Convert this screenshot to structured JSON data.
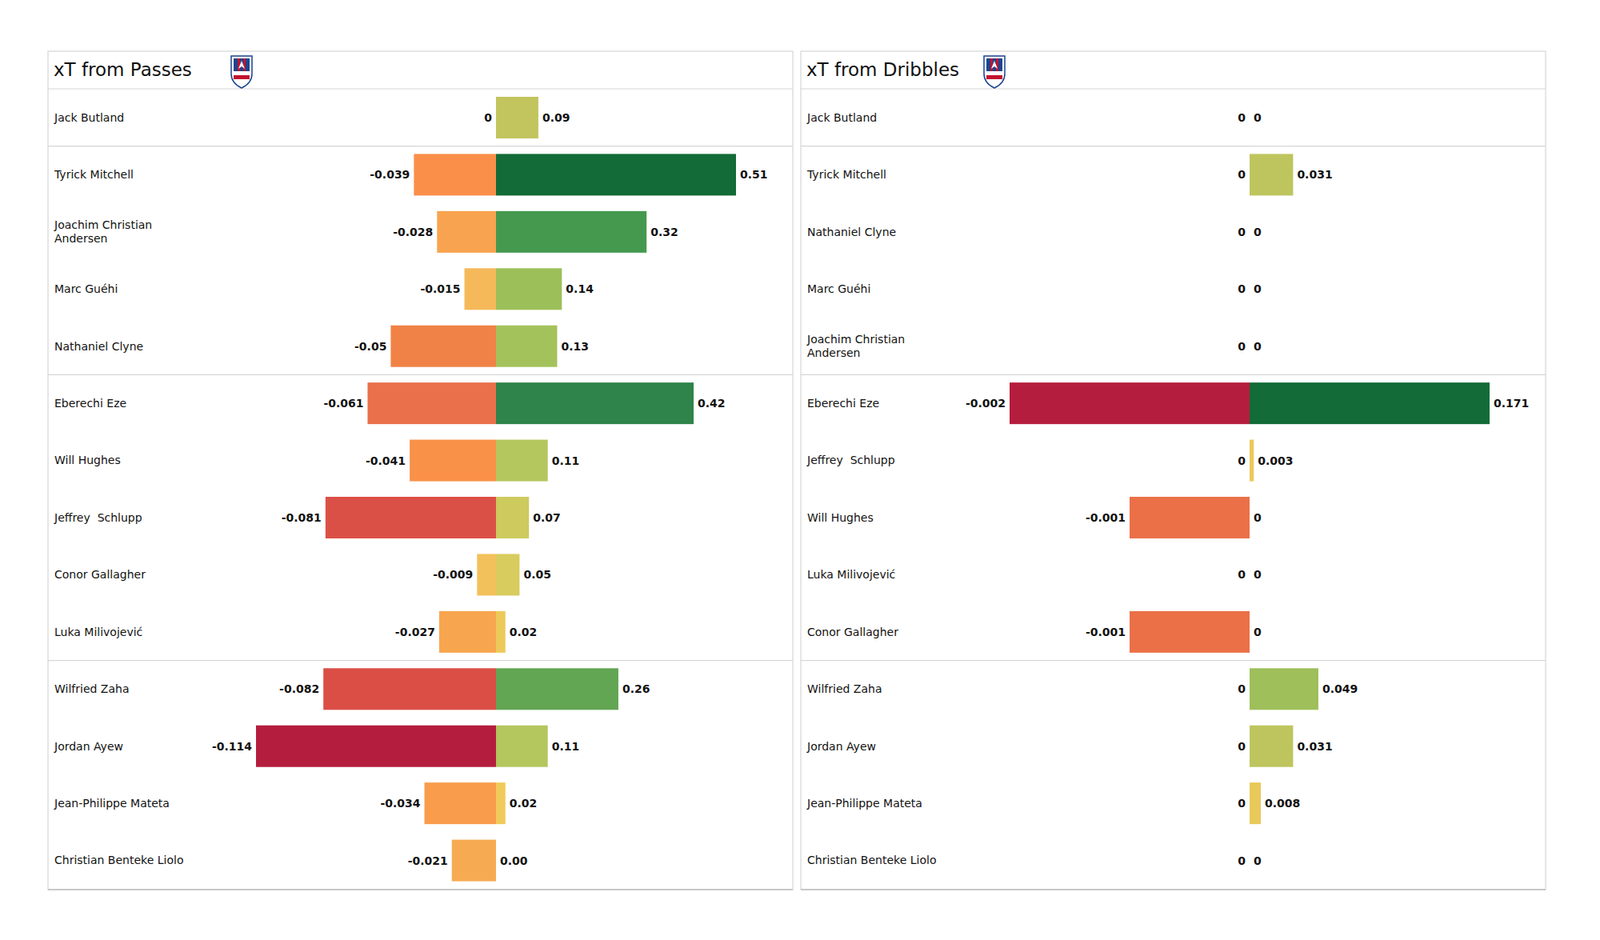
{
  "chart_data": [
    {
      "type": "bar",
      "title": "xT from Passes",
      "orientation": "horizontal",
      "data_labels": true,
      "xlim": [
        -0.114,
        0.51
      ],
      "categories": [
        "Jack Butland",
        "Tyrick Mitchell",
        "Joachim Christian\nAndersen",
        "Marc Guéhi",
        "Nathaniel Clyne",
        "Eberechi Eze",
        "Will Hughes",
        "Jeffrey  Schlupp",
        "Conor Gallagher",
        "Luka Milivojević",
        "Wilfried Zaha",
        "Jordan Ayew",
        "Jean-Philippe Mateta",
        "Christian Benteke Liolo"
      ],
      "series": [
        {
          "values": [
            0,
            -0.039,
            -0.028,
            -0.015,
            -0.05,
            -0.061,
            -0.041,
            -0.081,
            -0.009,
            -0.027,
            -0.082,
            -0.114,
            -0.034,
            -0.021
          ],
          "colors": [
            "#f0c85a",
            "#fa8f4a",
            "#f8a34f",
            "#f5b95a",
            "#f08247",
            "#e9704a",
            "#f99148",
            "#db5046",
            "#f3c15b",
            "#f8a54f",
            "#da4e45",
            "#b51d3e",
            "#f99c4c",
            "#f6ab53"
          ]
        },
        {
          "values": [
            0.09,
            0.51,
            0.32,
            0.14,
            0.13,
            0.42,
            0.11,
            0.07,
            0.05,
            0.02,
            0.26,
            0.11,
            0.02,
            0
          ],
          "value_labels": [
            "0.09",
            "0.51",
            "0.32",
            "0.14",
            "0.13",
            "0.42",
            "0.11",
            "0.07",
            "0.05",
            "0.02",
            "0.26",
            "0.11",
            "0.02",
            "0.00"
          ],
          "colors": [
            "#c2c45e",
            "#136b37",
            "#45994f",
            "#9dbf5a",
            "#a4c25c",
            "#2e844a",
            "#b4c65e",
            "#cdca5e",
            "#d8cc5e",
            "#ecca5a",
            "#62a553",
            "#b4c65e",
            "#f0ca5a",
            "#f5c85a"
          ]
        }
      ]
    },
    {
      "type": "bar",
      "title": "xT from Dribbles",
      "orientation": "horizontal",
      "data_labels": true,
      "xlim": [
        -0.002,
        0.171
      ],
      "categories": [
        "Jack Butland",
        "Tyrick Mitchell",
        "Nathaniel Clyne",
        "Marc Guéhi",
        "Joachim Christian\nAndersen",
        "Eberechi Eze",
        "Jeffrey  Schlupp",
        "Will Hughes",
        "Luka Milivojević",
        "Conor Gallagher",
        "Wilfried Zaha",
        "Jordan Ayew",
        "Jean-Philippe Mateta",
        "Christian Benteke Liolo"
      ],
      "series": [
        {
          "values": [
            0,
            0,
            0,
            0,
            0,
            -0.002,
            0,
            -0.001,
            0,
            -0.001,
            0,
            0,
            0,
            0
          ],
          "colors": [
            "#f0ca5a",
            "#f0ca5a",
            "#f0ca5a",
            "#f0ca5a",
            "#f0ca5a",
            "#b51d3e",
            "#f0ca5a",
            "#eb7047",
            "#f0ca5a",
            "#eb7047",
            "#f0ca5a",
            "#f0ca5a",
            "#f0ca5a",
            "#f0ca5a"
          ]
        },
        {
          "values": [
            0,
            0.031,
            0,
            0,
            0,
            0.171,
            0.003,
            0,
            0,
            0,
            0.049,
            0.031,
            0.008,
            0
          ],
          "colors": [
            "#eeca5c",
            "#bec55e",
            "#f0ca5a",
            "#f0ca5a",
            "#f0ca5a",
            "#136b37",
            "#ecc95a",
            "#f0ca5a",
            "#f0ca5a",
            "#f0ca5a",
            "#9ebf5a",
            "#bec55e",
            "#e8c95a",
            "#f0ca5a"
          ]
        }
      ]
    }
  ]
}
